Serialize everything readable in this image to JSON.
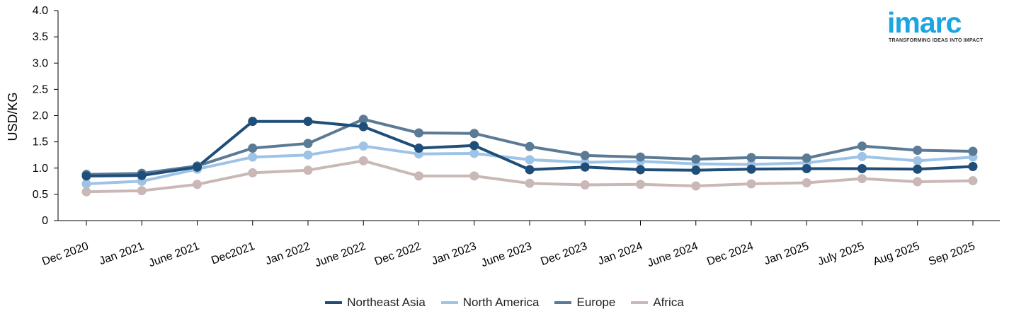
{
  "logo": {
    "word": "imarc",
    "tagline": "TRANSFORMING IDEAS INTO IMPACT",
    "color": "#1aa6e0"
  },
  "chart_data": {
    "type": "line",
    "title": "",
    "xlabel": "",
    "ylabel": "USD/KG",
    "ylim": [
      0,
      4.0
    ],
    "yticks": [
      "0",
      "0.5",
      "1.0",
      "1.5",
      "2.0",
      "2.5",
      "3.0",
      "3.5",
      "4.0"
    ],
    "grid": false,
    "legend_position": "bottom-center",
    "categories": [
      "Dec 2020",
      "Jan 2021",
      "June 2021",
      "Dec2021",
      "Jan 2022",
      "June 2022",
      "Dec 2022",
      "Jan 2023",
      "June 2023",
      "Dec 2023",
      "Jan 2024",
      "June 2024",
      "Dec 2024",
      "Jan 2025",
      "July 2025",
      "Aug 2025",
      "Sep 2025"
    ],
    "series": [
      {
        "name": "Northeast Asia",
        "color": "#1f4e79",
        "values": [
          0.85,
          0.86,
          1.02,
          1.89,
          1.89,
          1.79,
          1.38,
          1.43,
          0.97,
          1.02,
          0.97,
          0.96,
          0.98,
          0.99,
          0.99,
          0.98,
          1.03
        ]
      },
      {
        "name": "North America",
        "color": "#9dc3e6",
        "values": [
          0.7,
          0.75,
          0.98,
          1.21,
          1.25,
          1.42,
          1.27,
          1.28,
          1.16,
          1.11,
          1.13,
          1.08,
          1.07,
          1.1,
          1.22,
          1.14,
          1.21
        ]
      },
      {
        "name": "Europe",
        "color": "#5b7a96",
        "values": [
          0.88,
          0.9,
          1.04,
          1.38,
          1.47,
          1.93,
          1.67,
          1.66,
          1.41,
          1.24,
          1.21,
          1.17,
          1.2,
          1.19,
          1.42,
          1.34,
          1.32
        ]
      },
      {
        "name": "Africa",
        "color": "#c9b8b5",
        "values": [
          0.55,
          0.57,
          0.69,
          0.91,
          0.96,
          1.14,
          0.85,
          0.85,
          0.71,
          0.68,
          0.69,
          0.66,
          0.7,
          0.72,
          0.8,
          0.74,
          0.76
        ]
      }
    ]
  }
}
